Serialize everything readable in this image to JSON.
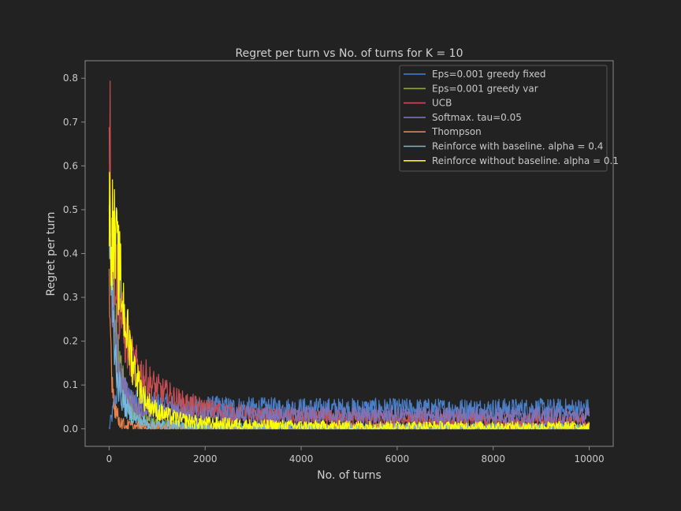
{
  "chart_data": {
    "type": "line",
    "title": "Regret per turn vs No. of turns for K = 10",
    "xlabel": "No. of turns",
    "ylabel": "Regret per turn",
    "xlim": [
      -500,
      10500
    ],
    "ylim": [
      -0.04,
      0.84
    ],
    "xticks": [
      0,
      2000,
      4000,
      6000,
      8000,
      10000
    ],
    "yticks": [
      0.0,
      0.1,
      0.2,
      0.3,
      0.4,
      0.5,
      0.6,
      0.7,
      0.8
    ],
    "xtick_labels": [
      "0",
      "2000",
      "4000",
      "6000",
      "8000",
      "10000"
    ],
    "ytick_labels": [
      "0.0",
      "0.1",
      "0.2",
      "0.3",
      "0.4",
      "0.5",
      "0.6",
      "0.7",
      "0.8"
    ],
    "legend_position": "top-right",
    "grid": false,
    "series": [
      {
        "name": "Eps=0.001 greedy fixed",
        "color": "#4a7fc9",
        "x": [
          0,
          200,
          400,
          600,
          1000,
          1500,
          2000,
          3000,
          4000,
          6000,
          8000,
          10000
        ],
        "y": [
          0.0,
          0.1,
          0.07,
          0.06,
          0.055,
          0.05,
          0.05,
          0.047,
          0.046,
          0.045,
          0.045,
          0.045
        ]
      },
      {
        "name": "Eps=0.001 greedy var",
        "color": "#8ba34a",
        "x": [
          0,
          100,
          200,
          400,
          600,
          1000,
          2000,
          4000,
          10000
        ],
        "y": [
          0.5,
          0.3,
          0.15,
          0.06,
          0.03,
          0.01,
          0.003,
          0.002,
          0.001
        ]
      },
      {
        "name": "UCB",
        "color": "#c44e52",
        "x": [
          0,
          30,
          100,
          200,
          300,
          500,
          800,
          1000,
          1500,
          2000,
          3000,
          4000,
          6000,
          8000,
          10000
        ],
        "y": [
          0.8,
          0.56,
          0.4,
          0.3,
          0.22,
          0.15,
          0.11,
          0.09,
          0.06,
          0.045,
          0.03,
          0.025,
          0.02,
          0.018,
          0.017
        ]
      },
      {
        "name": "Softmax. tau=0.05",
        "color": "#8172b3",
        "x": [
          0,
          100,
          200,
          400,
          600,
          1000,
          1500,
          2000,
          3000,
          4000,
          6000,
          8000,
          10000
        ],
        "y": [
          0.45,
          0.25,
          0.12,
          0.07,
          0.05,
          0.04,
          0.035,
          0.033,
          0.031,
          0.03,
          0.03,
          0.03,
          0.029
        ]
      },
      {
        "name": "Thompson",
        "color": "#e8824a",
        "x": [
          0,
          50,
          100,
          200,
          300,
          500,
          1000,
          2000,
          10000
        ],
        "y": [
          0.3,
          0.15,
          0.06,
          0.02,
          0.01,
          0.004,
          0.002,
          0.001,
          0.0
        ]
      },
      {
        "name": "Reinforce with baseline. alpha = 0.4",
        "color": "#74b9d9",
        "x": [
          0,
          50,
          100,
          200,
          300,
          400,
          600,
          800,
          1000,
          1500,
          2000,
          4000,
          10000
        ],
        "y": [
          0.45,
          0.33,
          0.2,
          0.1,
          0.06,
          0.04,
          0.02,
          0.012,
          0.008,
          0.004,
          0.002,
          0.001,
          0.0
        ]
      },
      {
        "name": "Reinforce without baseline. alpha = 0.1",
        "color": "#ffff00",
        "x": [
          0,
          50,
          100,
          200,
          300,
          400,
          500,
          600,
          700,
          800,
          1000,
          1200,
          1500,
          2000,
          3000,
          4000,
          6000,
          8000,
          10000
        ],
        "y": [
          0.48,
          0.46,
          0.43,
          0.36,
          0.28,
          0.2,
          0.15,
          0.11,
          0.08,
          0.06,
          0.04,
          0.03,
          0.02,
          0.013,
          0.008,
          0.006,
          0.005,
          0.004,
          0.004
        ]
      }
    ]
  }
}
